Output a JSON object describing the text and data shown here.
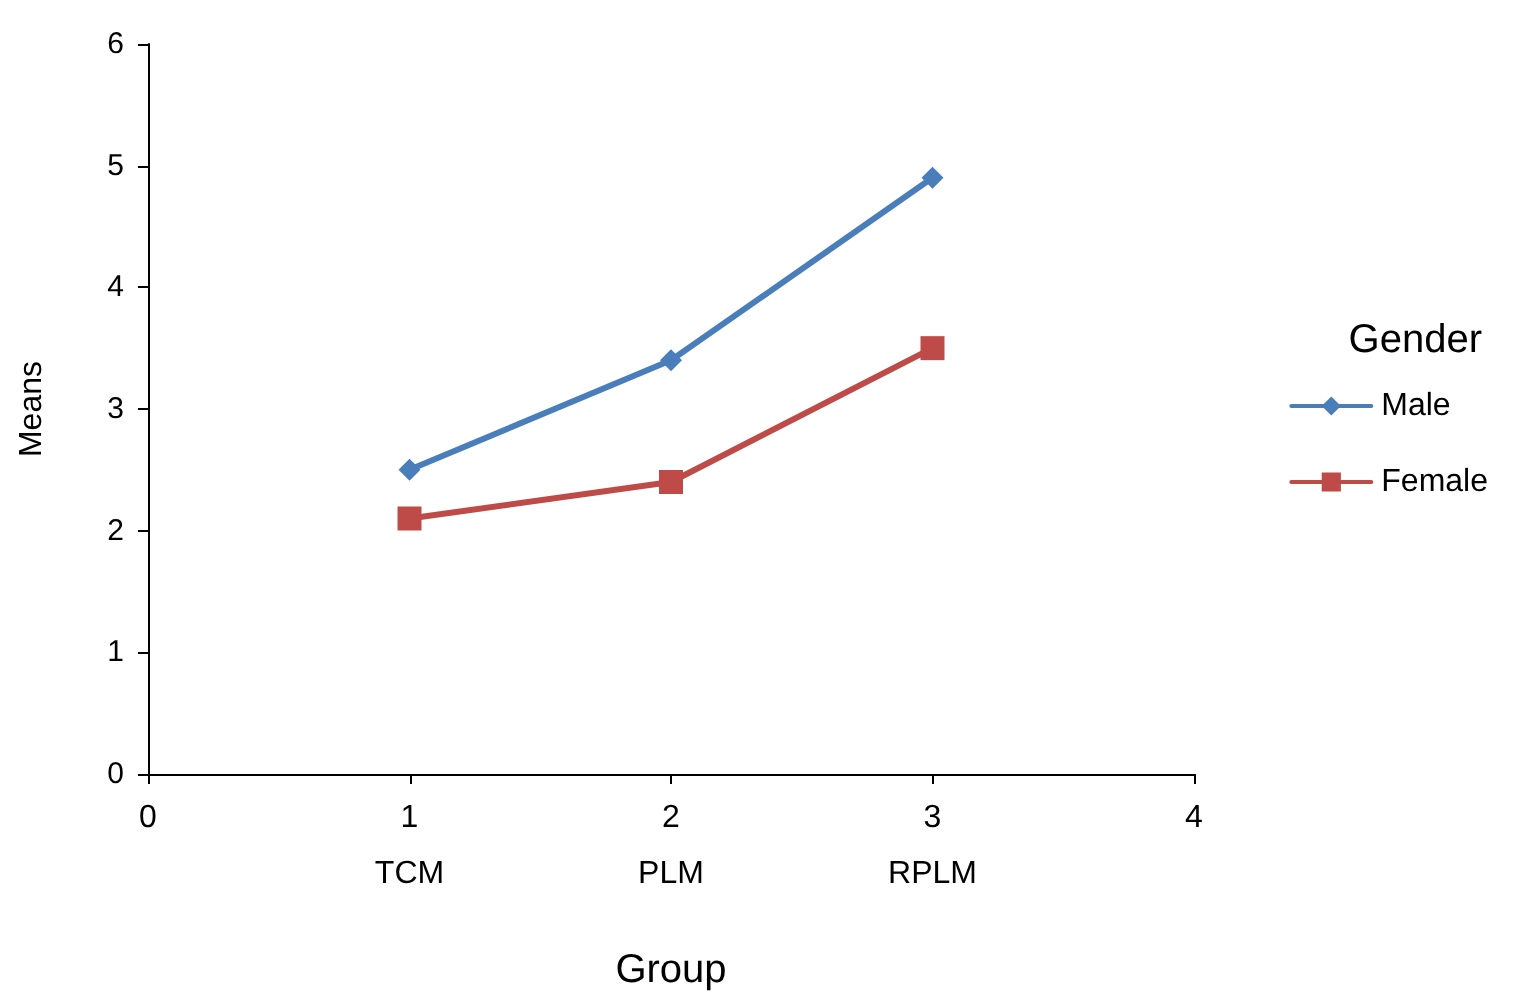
{
  "chart_data": {
    "type": "line",
    "xlabel": "Group",
    "ylabel": "Means",
    "legend_title": "Gender",
    "legend": "right",
    "grid": false,
    "x": [
      1,
      2,
      3
    ],
    "xlim": [
      0,
      4
    ],
    "xticks": [
      0,
      {
        "value": 1,
        "label": "1\nTCM"
      },
      {
        "value": 2,
        "label": "2\nPLM"
      },
      {
        "value": 3,
        "label": "3\nRPLM"
      },
      4
    ],
    "ylim": [
      0,
      6
    ],
    "yticks": [
      0,
      1,
      2,
      3,
      4,
      5,
      6
    ],
    "series": [
      {
        "name": "Male",
        "color": "#4a7ebb",
        "marker": "diamond",
        "values": [
          2.5,
          3.4,
          4.9
        ]
      },
      {
        "name": "Female",
        "color": "#be4b48",
        "marker": "square",
        "values": [
          2.1,
          2.4,
          3.5
        ]
      }
    ]
  }
}
